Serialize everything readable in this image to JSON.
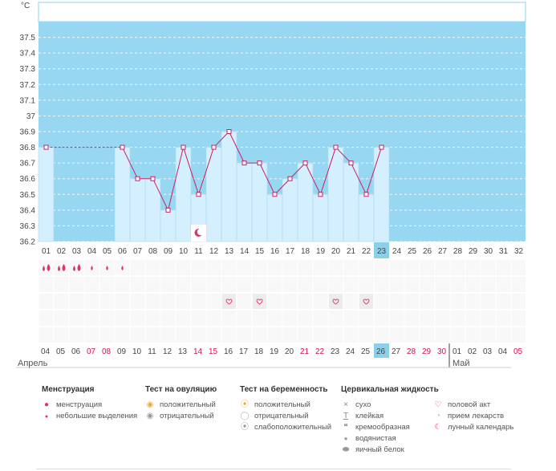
{
  "chart_data": {
    "type": "bar",
    "title": "",
    "ylabel": "°C",
    "ylim": [
      36.2,
      37.6
    ],
    "y_ticks": [
      "37.5",
      "37.4",
      "37.3",
      "37.2",
      "37.1",
      "37",
      "36.9",
      "36.8",
      "36.7",
      "36.6",
      "36.5",
      "36.4",
      "36.3",
      "36.2"
    ],
    "cycle_days": [
      "01",
      "02",
      "03",
      "04",
      "05",
      "06",
      "07",
      "08",
      "09",
      "10",
      "11",
      "12",
      "13",
      "14",
      "15",
      "16",
      "17",
      "18",
      "19",
      "20",
      "21",
      "22",
      "23",
      "24",
      "25",
      "26",
      "27",
      "28",
      "29",
      "30",
      "31",
      "32"
    ],
    "temperatures": [
      36.8,
      null,
      null,
      null,
      null,
      36.8,
      36.6,
      36.6,
      36.4,
      36.8,
      36.5,
      36.8,
      36.9,
      36.7,
      36.7,
      36.5,
      36.6,
      36.7,
      36.5,
      36.8,
      36.7,
      36.5,
      36.8,
      null,
      null,
      null,
      null,
      null,
      null,
      null,
      null,
      null
    ],
    "current_cycle_day": "23",
    "coverline": 36.8,
    "dates": [
      "04",
      "05",
      "06",
      "07",
      "08",
      "09",
      "10",
      "11",
      "12",
      "13",
      "14",
      "15",
      "16",
      "17",
      "18",
      "19",
      "20",
      "21",
      "22",
      "23",
      "24",
      "25",
      "26",
      "27",
      "28",
      "29",
      "30",
      "01",
      "02",
      "03",
      "04",
      "05"
    ],
    "weekend_dates": [
      3,
      4,
      10,
      11,
      17,
      18,
      24,
      25,
      26,
      31
    ],
    "today_date_index": 22,
    "months": [
      "Апрель",
      "Май"
    ],
    "menstruation": [
      2,
      2,
      2,
      1,
      1,
      1,
      0,
      0,
      0,
      0,
      0,
      0,
      0,
      0,
      0,
      0,
      0,
      0,
      0,
      0,
      0,
      0,
      0,
      0,
      0,
      0,
      0,
      0,
      0,
      0,
      0,
      0
    ],
    "intercourse_days": [
      13,
      15,
      20,
      22
    ],
    "lunar_day": 11,
    "colors": {
      "sky": "#97d7f2",
      "bar": "#d4effd",
      "bar_edge": "#a9d9f2",
      "line": "#cc1f66",
      "today": "#8ccfe8",
      "weekend": "#d40f52"
    }
  },
  "legend": {
    "menstruation": {
      "title": "Менструация",
      "items": [
        "менструация",
        "небольшие выделения"
      ]
    },
    "ovulation": {
      "title": "Тест на овуляцию",
      "items": [
        "положительный",
        "отрицательный"
      ]
    },
    "pregnancy": {
      "title": "Тест на беременность",
      "items": [
        "положительный",
        "отрицательный",
        "слабоположительный"
      ]
    },
    "cervical": {
      "title": "Цервикальная жидкость",
      "items": [
        "сухо",
        "клейкая",
        "кремообразная",
        "водянистая",
        "яичный белок"
      ]
    },
    "other": {
      "items": [
        "половой акт",
        "прием лекарств",
        "лунный календарь"
      ]
    }
  }
}
